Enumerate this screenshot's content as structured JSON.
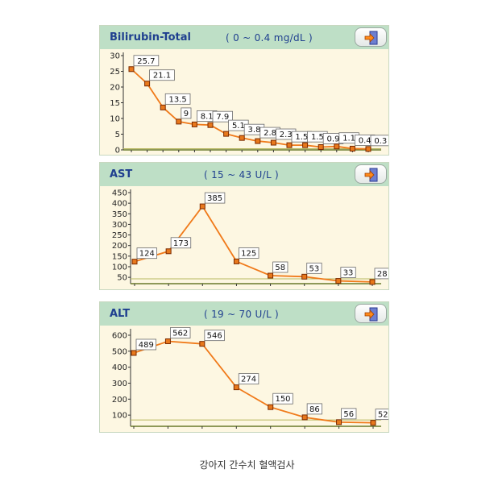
{
  "colors": {
    "header_bg": "#bedfc6",
    "plot_bg": "#fdf7e2",
    "title_text": "#1f3f8f",
    "line": "#f07a1a",
    "marker_fill": "#e8781c",
    "marker_border": "#7a2a00",
    "axis": "#6a7a2a",
    "ref_line": "#b8b860"
  },
  "caption": "강아지 간수치 혈액검사",
  "export_icon": "export-arrow-icon",
  "chart_data": [
    {
      "type": "line",
      "title": "Bilirubin-Total",
      "reference_range": "( 0 ~ 0.4 mg/dL )",
      "ylim": [
        0,
        30
      ],
      "yticks": [
        "0",
        "5",
        "10",
        "15",
        "20",
        "25",
        "30"
      ],
      "reference_value": 0.4,
      "series": [
        {
          "values": [
            25.7,
            21.1,
            13.5,
            9,
            8.1,
            7.9,
            5.1,
            3.8,
            2.8,
            2.3,
            1.5,
            1.5,
            0.9,
            1.1,
            0.4,
            0.3
          ]
        }
      ],
      "data_labels": [
        "25.7",
        "21.1",
        "13.5",
        "9",
        "8.1",
        "7.9",
        "5.1",
        "3.8",
        "2.8",
        "2.3",
        "1.5",
        "1.5",
        "0.9",
        "1.1",
        "0.4",
        "0.3"
      ]
    },
    {
      "type": "line",
      "title": "AST",
      "reference_range": "( 15 ~ 43 U/L )",
      "ylim": [
        20,
        450
      ],
      "yticks": [
        "50",
        "100",
        "150",
        "200",
        "250",
        "300",
        "350",
        "400",
        "450"
      ],
      "reference_value": 43,
      "series": [
        {
          "values": [
            124,
            173,
            385,
            125,
            58,
            53,
            33,
            28
          ]
        }
      ],
      "data_labels": [
        "124",
        "173",
        "385",
        "125",
        "58",
        "53",
        "33",
        "28"
      ]
    },
    {
      "type": "line",
      "title": "ALT",
      "reference_range": "( 19 ~ 70 U/L )",
      "ylim": [
        30,
        620
      ],
      "yticks": [
        "100",
        "200",
        "300",
        "400",
        "500",
        "600"
      ],
      "reference_value": 70,
      "series": [
        {
          "values": [
            489,
            562,
            546,
            274,
            150,
            86,
            56,
            52
          ]
        }
      ],
      "data_labels": [
        "489",
        "562",
        "546",
        "274",
        "150",
        "86",
        "56",
        "52"
      ]
    }
  ]
}
